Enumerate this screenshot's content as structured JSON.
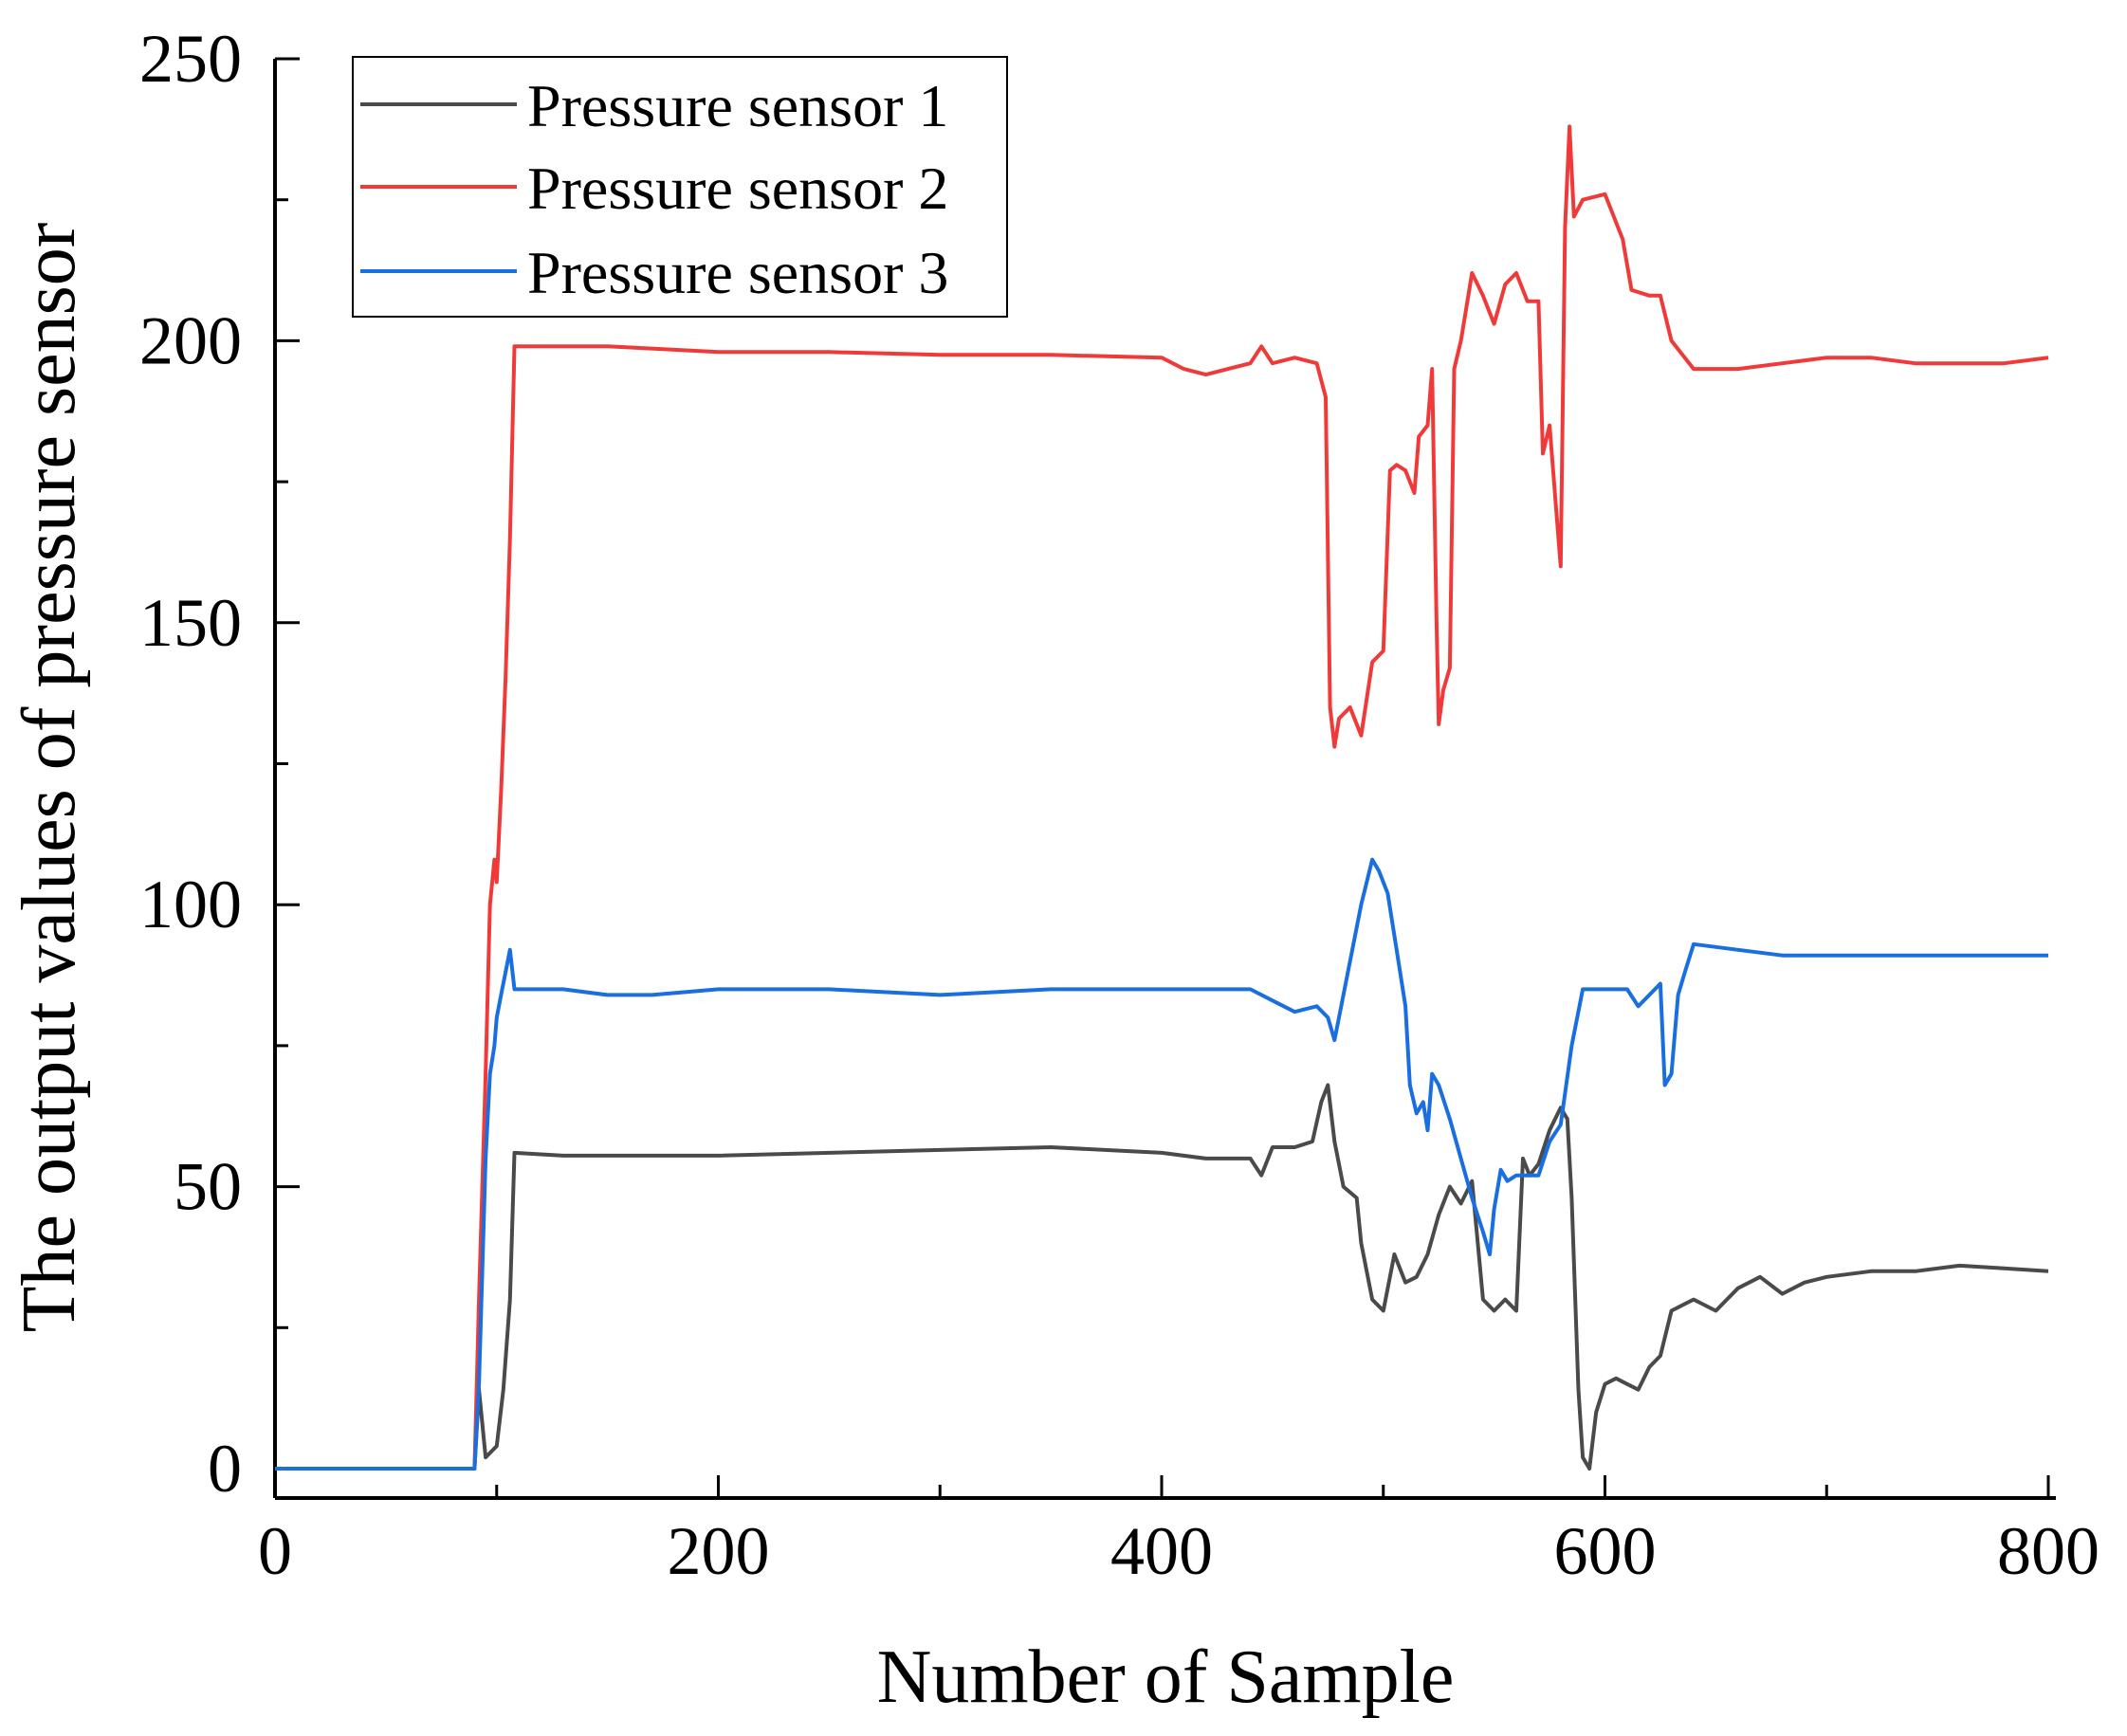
{
  "chart_data": {
    "type": "line",
    "title": "",
    "xlabel": "Number of Sample",
    "ylabel": "The output values of  pressure sensor",
    "xlim": [
      0,
      800
    ],
    "ylim": [
      0,
      250
    ],
    "xticks": [
      0,
      200,
      400,
      600,
      800
    ],
    "xtick_labels": [
      "0",
      "200",
      "400",
      "600",
      "800"
    ],
    "yticks": [
      0,
      50,
      100,
      150,
      200,
      250
    ],
    "ytick_labels": [
      "0",
      "50",
      "100",
      "150",
      "200",
      "250"
    ],
    "grid": false,
    "legend_position": "top-left",
    "series": [
      {
        "name": "Pressure sensor 1",
        "color": "#4a4a4a",
        "points": [
          [
            0,
            0
          ],
          [
            90,
            0
          ],
          [
            92,
            14
          ],
          [
            95,
            2
          ],
          [
            100,
            4
          ],
          [
            103,
            14
          ],
          [
            106,
            30
          ],
          [
            108,
            56
          ],
          [
            130,
            55.5
          ],
          [
            200,
            55.5
          ],
          [
            300,
            56.5
          ],
          [
            350,
            57
          ],
          [
            400,
            56
          ],
          [
            420,
            55
          ],
          [
            440,
            55
          ],
          [
            445,
            52
          ],
          [
            450,
            57
          ],
          [
            460,
            57
          ],
          [
            468,
            58
          ],
          [
            472,
            65
          ],
          [
            475,
            68
          ],
          [
            478,
            58
          ],
          [
            482,
            50
          ],
          [
            488,
            48
          ],
          [
            490,
            40
          ],
          [
            495,
            30
          ],
          [
            500,
            28
          ],
          [
            505,
            38
          ],
          [
            510,
            33
          ],
          [
            515,
            34
          ],
          [
            520,
            38
          ],
          [
            525,
            45
          ],
          [
            530,
            50
          ],
          [
            535,
            47
          ],
          [
            540,
            51
          ],
          [
            545,
            30
          ],
          [
            550,
            28
          ],
          [
            555,
            30
          ],
          [
            560,
            28
          ],
          [
            563,
            55
          ],
          [
            566,
            52
          ],
          [
            570,
            54
          ],
          [
            575,
            60
          ],
          [
            580,
            64
          ],
          [
            583,
            62
          ],
          [
            585,
            48
          ],
          [
            588,
            14
          ],
          [
            590,
            2
          ],
          [
            593,
            0
          ],
          [
            596,
            10
          ],
          [
            600,
            15
          ],
          [
            605,
            16
          ],
          [
            610,
            15
          ],
          [
            615,
            14
          ],
          [
            620,
            18
          ],
          [
            625,
            20
          ],
          [
            630,
            28
          ],
          [
            640,
            30
          ],
          [
            650,
            28
          ],
          [
            660,
            32
          ],
          [
            670,
            34
          ],
          [
            680,
            31
          ],
          [
            690,
            33
          ],
          [
            700,
            34
          ],
          [
            720,
            35
          ],
          [
            740,
            35
          ],
          [
            760,
            36
          ],
          [
            780,
            35.5
          ],
          [
            800,
            35
          ]
        ]
      },
      {
        "name": "Pressure sensor 2",
        "color": "#f03a3a",
        "points": [
          [
            0,
            0
          ],
          [
            90,
            0
          ],
          [
            92,
            30
          ],
          [
            95,
            70
          ],
          [
            97,
            100
          ],
          [
            99,
            108
          ],
          [
            100,
            104
          ],
          [
            102,
            120
          ],
          [
            104,
            140
          ],
          [
            106,
            165
          ],
          [
            108,
            199
          ],
          [
            150,
            199
          ],
          [
            200,
            198
          ],
          [
            250,
            198
          ],
          [
            300,
            197.5
          ],
          [
            350,
            197.5
          ],
          [
            400,
            197
          ],
          [
            410,
            195
          ],
          [
            420,
            194
          ],
          [
            430,
            195
          ],
          [
            440,
            196
          ],
          [
            445,
            199
          ],
          [
            450,
            196
          ],
          [
            460,
            197
          ],
          [
            470,
            196
          ],
          [
            474,
            190
          ],
          [
            476,
            135
          ],
          [
            478,
            128
          ],
          [
            480,
            133
          ],
          [
            485,
            135
          ],
          [
            490,
            130
          ],
          [
            495,
            143
          ],
          [
            500,
            145
          ],
          [
            503,
            177
          ],
          [
            506,
            178
          ],
          [
            510,
            177
          ],
          [
            512,
            175
          ],
          [
            514,
            173
          ],
          [
            516,
            183
          ],
          [
            520,
            185
          ],
          [
            522,
            195
          ],
          [
            524,
            150
          ],
          [
            525,
            132
          ],
          [
            527,
            138
          ],
          [
            530,
            142
          ],
          [
            532,
            195
          ],
          [
            535,
            200
          ],
          [
            540,
            212
          ],
          [
            545,
            208
          ],
          [
            550,
            203
          ],
          [
            555,
            210
          ],
          [
            560,
            212
          ],
          [
            565,
            207
          ],
          [
            570,
            207
          ],
          [
            572,
            180
          ],
          [
            575,
            185
          ],
          [
            578,
            170
          ],
          [
            580,
            160
          ],
          [
            582,
            220
          ],
          [
            584,
            238
          ],
          [
            586,
            222
          ],
          [
            590,
            225
          ],
          [
            600,
            226
          ],
          [
            608,
            218
          ],
          [
            612,
            209
          ],
          [
            620,
            208
          ],
          [
            625,
            208
          ],
          [
            630,
            200
          ],
          [
            640,
            195
          ],
          [
            660,
            195
          ],
          [
            680,
            196
          ],
          [
            700,
            197
          ],
          [
            720,
            197
          ],
          [
            740,
            196
          ],
          [
            760,
            196
          ],
          [
            780,
            196
          ],
          [
            800,
            197
          ]
        ]
      },
      {
        "name": "Pressure sensor 3",
        "color": "#1a6fe0",
        "points": [
          [
            0,
            0
          ],
          [
            90,
            0
          ],
          [
            92,
            15
          ],
          [
            95,
            55
          ],
          [
            97,
            70
          ],
          [
            99,
            75
          ],
          [
            100,
            80
          ],
          [
            102,
            84
          ],
          [
            104,
            88
          ],
          [
            106,
            92
          ],
          [
            108,
            85
          ],
          [
            130,
            85
          ],
          [
            150,
            84
          ],
          [
            170,
            84
          ],
          [
            200,
            85
          ],
          [
            250,
            85
          ],
          [
            300,
            84
          ],
          [
            350,
            85
          ],
          [
            400,
            85
          ],
          [
            440,
            85
          ],
          [
            450,
            83
          ],
          [
            460,
            81
          ],
          [
            470,
            82
          ],
          [
            475,
            80
          ],
          [
            478,
            76
          ],
          [
            480,
            80
          ],
          [
            485,
            90
          ],
          [
            490,
            100
          ],
          [
            495,
            108
          ],
          [
            498,
            106
          ],
          [
            502,
            102
          ],
          [
            506,
            92
          ],
          [
            510,
            82
          ],
          [
            512,
            68
          ],
          [
            515,
            63
          ],
          [
            518,
            65
          ],
          [
            520,
            60
          ],
          [
            522,
            70
          ],
          [
            525,
            68
          ],
          [
            530,
            62
          ],
          [
            535,
            55
          ],
          [
            540,
            48
          ],
          [
            545,
            42
          ],
          [
            548,
            38
          ],
          [
            550,
            46
          ],
          [
            553,
            53
          ],
          [
            556,
            51
          ],
          [
            560,
            52
          ],
          [
            570,
            52
          ],
          [
            575,
            58
          ],
          [
            580,
            61
          ],
          [
            585,
            75
          ],
          [
            590,
            85
          ],
          [
            600,
            85
          ],
          [
            610,
            85
          ],
          [
            615,
            82
          ],
          [
            620,
            84
          ],
          [
            625,
            86
          ],
          [
            627,
            68
          ],
          [
            630,
            70
          ],
          [
            633,
            84
          ],
          [
            636,
            88
          ],
          [
            640,
            93
          ],
          [
            660,
            92
          ],
          [
            680,
            91
          ],
          [
            700,
            91
          ],
          [
            720,
            91
          ],
          [
            740,
            91
          ],
          [
            760,
            91
          ],
          [
            780,
            91
          ],
          [
            800,
            91
          ]
        ]
      }
    ]
  }
}
